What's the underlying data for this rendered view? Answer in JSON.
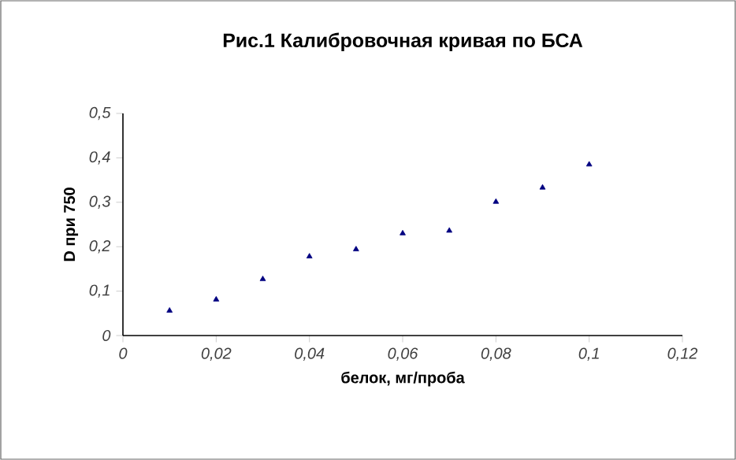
{
  "chart_data": {
    "type": "scatter",
    "title": "Рис.1 Калибровочная кривая по БСА",
    "xlabel": "белок, мг/проба",
    "ylabel": "D при 750",
    "x": [
      0.01,
      0.02,
      0.03,
      0.04,
      0.05,
      0.06,
      0.07,
      0.08,
      0.09,
      0.1
    ],
    "series": [
      {
        "color": "#000080",
        "values": [
          0.056,
          0.081,
          0.127,
          0.178,
          0.194,
          0.23,
          0.236,
          0.301,
          0.333,
          0.385
        ]
      }
    ],
    "marker": "triangle",
    "grid": false,
    "xlim": [
      0,
      0.12
    ],
    "ylim": [
      0,
      0.5
    ],
    "xticks": [
      0,
      {
        "value": 0.02,
        "label": "0,02"
      },
      {
        "value": 0.04,
        "label": "0,04"
      },
      {
        "value": 0.06,
        "label": "0,06"
      },
      {
        "value": 0.08,
        "label": "0,08"
      },
      {
        "value": 0.1,
        "label": "0,1"
      },
      {
        "value": 0.12,
        "label": "0,12"
      }
    ],
    "yticks": [
      0,
      {
        "value": 0.1,
        "label": "0,1"
      },
      {
        "value": 0.2,
        "label": "0,2"
      },
      {
        "value": 0.3,
        "label": "0,3"
      },
      {
        "value": 0.4,
        "label": "0,4"
      },
      {
        "value": 0.5,
        "label": "0,5"
      }
    ]
  }
}
